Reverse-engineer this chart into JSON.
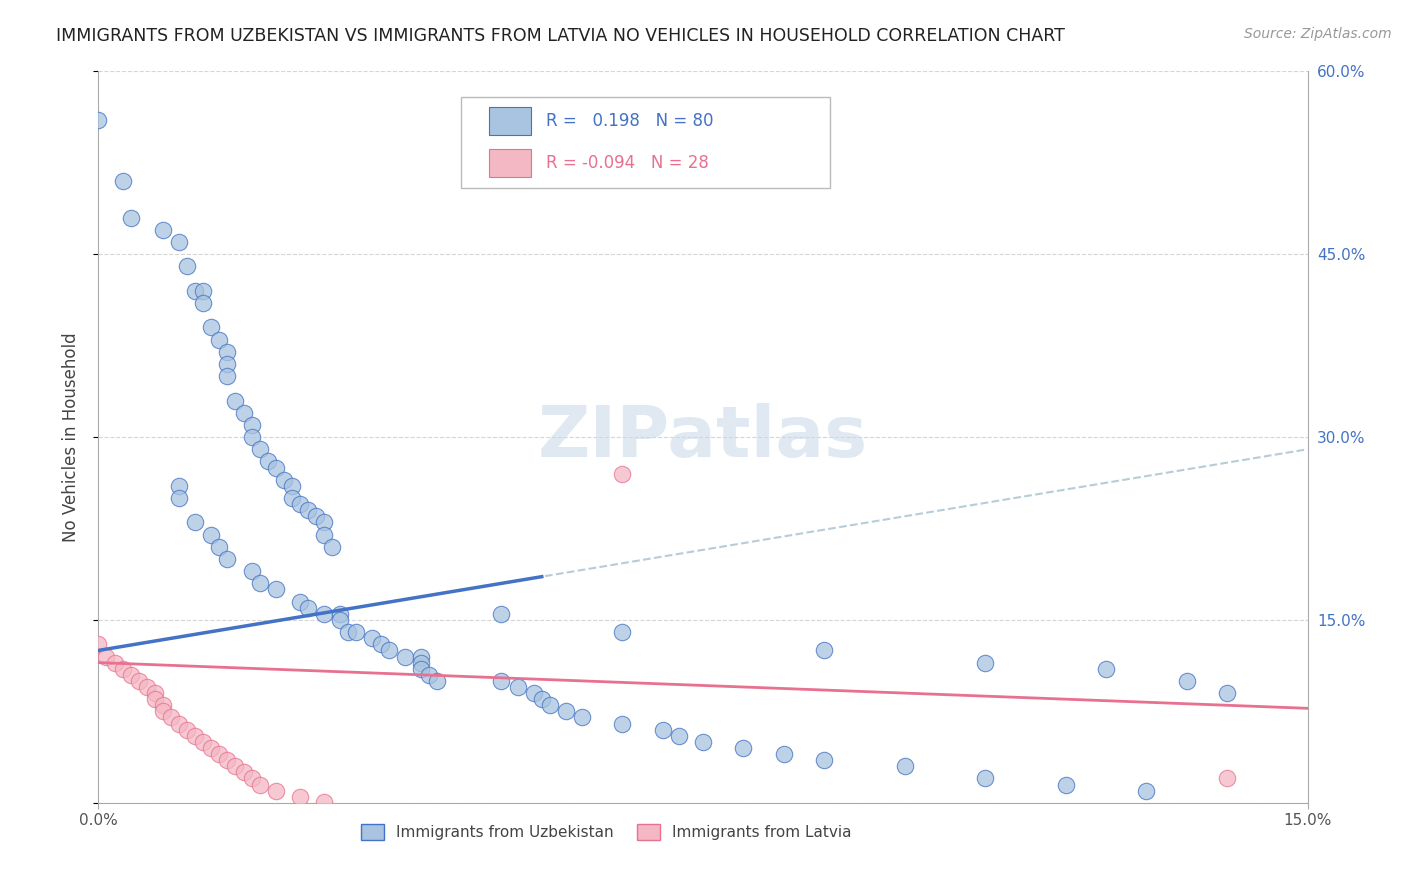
{
  "title": "IMMIGRANTS FROM UZBEKISTAN VS IMMIGRANTS FROM LATVIA NO VEHICLES IN HOUSEHOLD CORRELATION CHART",
  "source": "Source: ZipAtlas.com",
  "ylabel": "No Vehicles in Household",
  "xmin": 0.0,
  "xmax": 0.15,
  "ymin": 0.0,
  "ymax": 0.6,
  "color_uzbekistan": "#a8c4e0",
  "color_latvia": "#f4b8c4",
  "trendline_uzbekistan": "#4472c4",
  "trendline_latvia": "#e87090",
  "trendline_dash_color": "#b8ccd8",
  "watermark_text": "ZIPatlas",
  "uz_intercept": 0.125,
  "uz_slope": 1.1,
  "lv_intercept": 0.115,
  "lv_slope": -0.25,
  "uz_x": [
    0.0,
    0.003,
    0.004,
    0.008,
    0.01,
    0.011,
    0.012,
    0.013,
    0.013,
    0.014,
    0.015,
    0.016,
    0.016,
    0.016,
    0.017,
    0.018,
    0.019,
    0.019,
    0.02,
    0.021,
    0.022,
    0.023,
    0.024,
    0.024,
    0.025,
    0.026,
    0.027,
    0.028,
    0.028,
    0.029,
    0.01,
    0.01,
    0.012,
    0.014,
    0.015,
    0.016,
    0.019,
    0.02,
    0.022,
    0.025,
    0.026,
    0.028,
    0.03,
    0.03,
    0.031,
    0.032,
    0.034,
    0.035,
    0.036,
    0.038,
    0.04,
    0.04,
    0.04,
    0.041,
    0.042,
    0.05,
    0.052,
    0.054,
    0.055,
    0.056,
    0.058,
    0.06,
    0.065,
    0.07,
    0.072,
    0.075,
    0.08,
    0.085,
    0.09,
    0.1,
    0.11,
    0.12,
    0.13,
    0.05,
    0.065,
    0.09,
    0.11,
    0.125,
    0.135,
    0.14
  ],
  "uz_y": [
    0.56,
    0.51,
    0.48,
    0.47,
    0.46,
    0.44,
    0.42,
    0.42,
    0.41,
    0.39,
    0.38,
    0.37,
    0.36,
    0.35,
    0.33,
    0.32,
    0.31,
    0.3,
    0.29,
    0.28,
    0.275,
    0.265,
    0.26,
    0.25,
    0.245,
    0.24,
    0.235,
    0.23,
    0.22,
    0.21,
    0.26,
    0.25,
    0.23,
    0.22,
    0.21,
    0.2,
    0.19,
    0.18,
    0.175,
    0.165,
    0.16,
    0.155,
    0.155,
    0.15,
    0.14,
    0.14,
    0.135,
    0.13,
    0.125,
    0.12,
    0.12,
    0.115,
    0.11,
    0.105,
    0.1,
    0.1,
    0.095,
    0.09,
    0.085,
    0.08,
    0.075,
    0.07,
    0.065,
    0.06,
    0.055,
    0.05,
    0.045,
    0.04,
    0.035,
    0.03,
    0.02,
    0.015,
    0.01,
    0.155,
    0.14,
    0.125,
    0.115,
    0.11,
    0.1,
    0.09
  ],
  "lv_x": [
    0.0,
    0.001,
    0.002,
    0.003,
    0.004,
    0.005,
    0.006,
    0.007,
    0.007,
    0.008,
    0.008,
    0.009,
    0.01,
    0.011,
    0.012,
    0.013,
    0.014,
    0.015,
    0.016,
    0.017,
    0.018,
    0.019,
    0.02,
    0.022,
    0.025,
    0.028,
    0.065,
    0.14
  ],
  "lv_y": [
    0.13,
    0.12,
    0.115,
    0.11,
    0.105,
    0.1,
    0.095,
    0.09,
    0.085,
    0.08,
    0.075,
    0.07,
    0.065,
    0.06,
    0.055,
    0.05,
    0.045,
    0.04,
    0.035,
    0.03,
    0.025,
    0.02,
    0.015,
    0.01,
    0.005,
    0.001,
    0.27,
    0.02
  ]
}
